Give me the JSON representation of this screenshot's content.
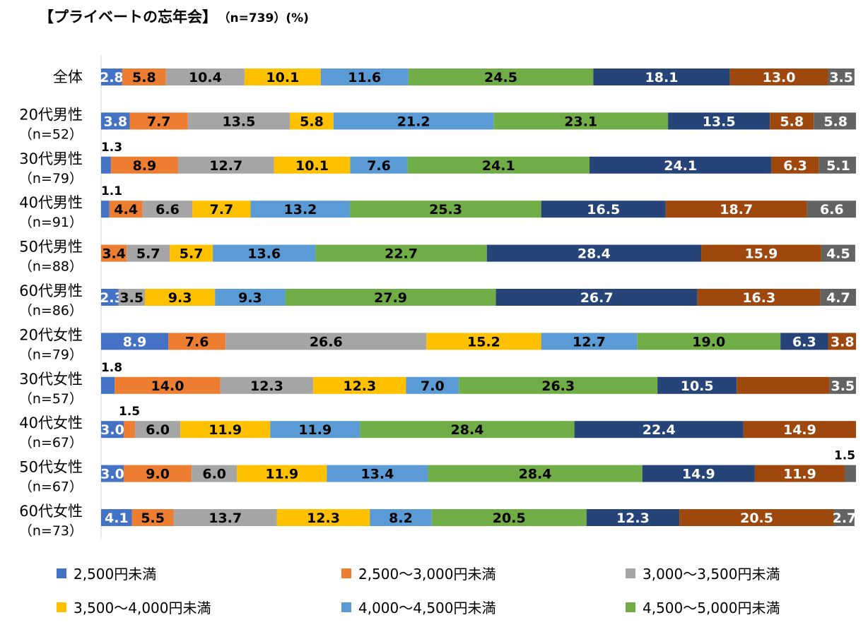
{
  "title": "【プライベートの忘年会】",
  "subtitle": "（n=739）(%)",
  "colors": [
    "#4472C4",
    "#ED7D31",
    "#A5A5A5",
    "#FFC000",
    "#5B9BD5",
    "#70AD47",
    "#264478",
    "#9E480E",
    "#636363"
  ],
  "chart_data": {
    "type": "bar",
    "orientation": "horizontal",
    "stacked": true,
    "xlim": [
      0,
      100
    ],
    "categories": [
      {
        "label": "全体",
        "sub": ""
      },
      {
        "label": "20代男性",
        "sub": "（n=52）"
      },
      {
        "label": "30代男性",
        "sub": "（n=79）"
      },
      {
        "label": "40代男性",
        "sub": "（n=91）"
      },
      {
        "label": "50代男性",
        "sub": "（n=88）"
      },
      {
        "label": "60代男性",
        "sub": "（n=86）"
      },
      {
        "label": "20代女性",
        "sub": "（n=79）"
      },
      {
        "label": "30代女性",
        "sub": "（n=57）"
      },
      {
        "label": "40代女性",
        "sub": "（n=67）"
      },
      {
        "label": "50代女性",
        "sub": "（n=67）"
      },
      {
        "label": "60代女性",
        "sub": "（n=73）"
      }
    ],
    "series": [
      {
        "name": "2,500円未満",
        "values": [
          2.8,
          3.8,
          1.3,
          1.1,
          0,
          2.3,
          8.9,
          1.8,
          3.0,
          3.0,
          4.1
        ]
      },
      {
        "name": "2,500～3,000円未満",
        "values": [
          5.8,
          7.7,
          8.9,
          4.4,
          3.4,
          0,
          7.6,
          14.0,
          1.5,
          9.0,
          5.5
        ]
      },
      {
        "name": "3,000～3,500円未満",
        "values": [
          10.4,
          13.5,
          12.7,
          6.6,
          5.7,
          3.5,
          26.6,
          12.3,
          6.0,
          6.0,
          13.7
        ]
      },
      {
        "name": "3,500～4,000円未満",
        "values": [
          10.1,
          5.8,
          10.1,
          7.7,
          5.7,
          9.3,
          15.2,
          12.3,
          11.9,
          11.9,
          12.3
        ]
      },
      {
        "name": "4,000～4,500円未満",
        "values": [
          11.6,
          21.2,
          7.6,
          13.2,
          13.6,
          9.3,
          12.7,
          7.0,
          11.9,
          13.4,
          8.2
        ]
      },
      {
        "name": "4,500～5,000円未満",
        "values": [
          24.5,
          23.1,
          24.1,
          25.3,
          22.7,
          27.9,
          19.0,
          26.3,
          28.4,
          28.4,
          20.5
        ]
      },
      {
        "name": "",
        "values": [
          18.1,
          13.5,
          24.1,
          16.5,
          28.4,
          26.7,
          6.3,
          10.5,
          22.4,
          14.9,
          12.3
        ]
      },
      {
        "name": "",
        "values": [
          13.0,
          5.8,
          6.3,
          18.7,
          15.9,
          16.3,
          3.8,
          12.3,
          14.9,
          11.9,
          20.5
        ]
      },
      {
        "name": "",
        "values": [
          3.5,
          5.8,
          5.1,
          6.6,
          4.5,
          4.7,
          0,
          3.5,
          0,
          1.5,
          2.7
        ]
      }
    ],
    "labels": [
      [
        "2.8",
        "5.8",
        "10.4",
        "10.1",
        "11.6",
        "24.5",
        "18.1",
        "13.0",
        "3.5"
      ],
      [
        "3.8",
        "7.7",
        "13.5",
        "5.8",
        "21.2",
        "23.1",
        "13.5",
        "5.8",
        "5.8"
      ],
      [
        "1.3",
        "8.9",
        "12.7",
        "10.1",
        "7.6",
        "24.1",
        "24.1",
        "6.3",
        "5.1"
      ],
      [
        "1.1",
        "4.4",
        "6.6",
        "7.7",
        "13.2",
        "25.3",
        "16.5",
        "18.7",
        "6.6"
      ],
      [
        "",
        "3.4",
        "5.7",
        "5.7",
        "13.6",
        "22.7",
        "28.4",
        "15.9",
        "4.5"
      ],
      [
        "2.3",
        "",
        "3.5",
        "9.3",
        "9.3",
        "27.9",
        "26.7",
        "16.3",
        "4.7"
      ],
      [
        "8.9",
        "7.6",
        "26.6",
        "15.2",
        "12.7",
        "19.0",
        "6.3",
        "3.8",
        ""
      ],
      [
        "1.8",
        "14.0",
        "12.3",
        "12.3",
        "7.0",
        "26.3",
        "10.5",
        "",
        "3.5"
      ],
      [
        "3.0",
        "1.5",
        "6.0",
        "11.9",
        "11.9",
        "28.4",
        "22.4",
        "14.9",
        ""
      ],
      [
        "3.0",
        "9.0",
        "6.0",
        "11.9",
        "13.4",
        "28.4",
        "14.9",
        "11.9",
        "1.5"
      ],
      [
        "4.1",
        "5.5",
        "13.7",
        "12.3",
        "8.2",
        "20.5",
        "12.3",
        "20.5",
        "2.7"
      ]
    ],
    "legend_position": "bottom"
  }
}
